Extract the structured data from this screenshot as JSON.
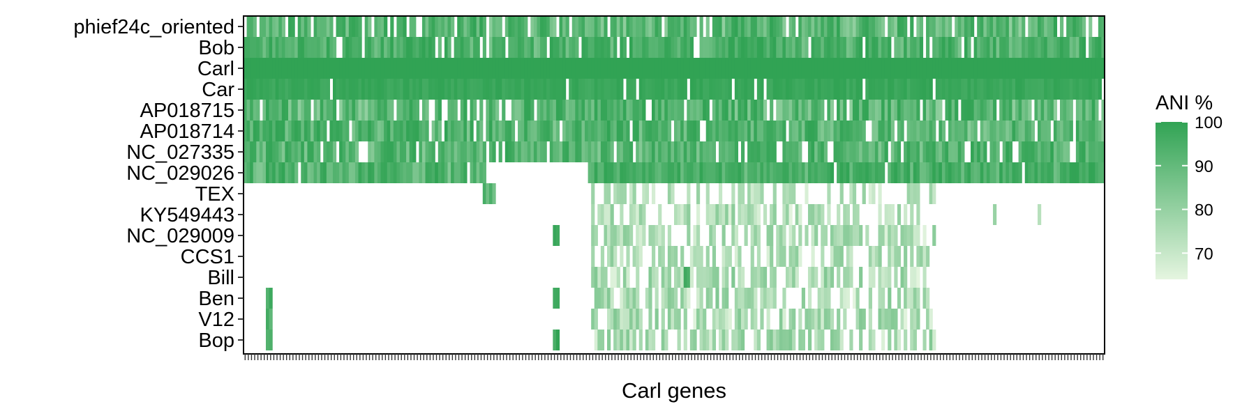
{
  "chart_data": {
    "type": "heatmap",
    "title": "",
    "xlabel": "Carl genes",
    "ylabel": "",
    "rows": [
      "phief24c_oriented",
      "Bob",
      "Carl",
      "Car",
      "AP018715",
      "AP018714",
      "NC_027335",
      "NC_029026",
      "TEX",
      "KY549443",
      "NC_029009",
      "CCS1",
      "Bill",
      "Ben",
      "V12",
      "Bop"
    ],
    "n_genes": 270,
    "value_range": [
      64,
      100
    ],
    "colorbar": {
      "title": "ANI %",
      "ticks": [
        70,
        80,
        90,
        100
      ],
      "low_color": "#e5f5e0",
      "high_color": "#31a354"
    },
    "regions": [
      {
        "row": "phief24c_oriented",
        "gene_range": [
          1,
          270
        ],
        "presence": 0.88,
        "ani_range": [
          80,
          100
        ]
      },
      {
        "row": "Bob",
        "gene_range": [
          1,
          270
        ],
        "presence": 0.92,
        "ani_range": [
          84,
          100
        ]
      },
      {
        "row": "Carl",
        "gene_range": [
          1,
          270
        ],
        "presence": 1.0,
        "ani_range": [
          100,
          100
        ]
      },
      {
        "row": "Car",
        "gene_range": [
          1,
          270
        ],
        "presence": 0.97,
        "ani_range": [
          96,
          100
        ]
      },
      {
        "row": "AP018715",
        "gene_range": [
          1,
          270
        ],
        "presence": 0.88,
        "ani_range": [
          80,
          100
        ]
      },
      {
        "row": "AP018714",
        "gene_range": [
          1,
          270
        ],
        "presence": 0.9,
        "ani_range": [
          82,
          100
        ]
      },
      {
        "row": "NC_027335",
        "gene_range": [
          1,
          270
        ],
        "presence": 0.88,
        "ani_range": [
          82,
          100
        ]
      },
      {
        "row": "NC_029026",
        "gene_range": [
          1,
          76
        ],
        "presence": 0.95,
        "ani_range": [
          82,
          100
        ]
      },
      {
        "row": "NC_029026",
        "gene_range": [
          109,
          270
        ],
        "presence": 0.97,
        "ani_range": [
          86,
          100
        ]
      },
      {
        "row": "TEX",
        "gene_range": [
          110,
          217
        ],
        "presence": 0.45,
        "ani_range": [
          64,
          80
        ]
      },
      {
        "row": "KY549443",
        "gene_range": [
          110,
          217
        ],
        "presence": 0.6,
        "ani_range": [
          64,
          82
        ]
      },
      {
        "row": "NC_029009",
        "gene_range": [
          110,
          217
        ],
        "presence": 0.6,
        "ani_range": [
          64,
          82
        ]
      },
      {
        "row": "CCS1",
        "gene_range": [
          110,
          217
        ],
        "presence": 0.6,
        "ani_range": [
          64,
          82
        ]
      },
      {
        "row": "Bill",
        "gene_range": [
          110,
          217
        ],
        "presence": 0.62,
        "ani_range": [
          64,
          84
        ]
      },
      {
        "row": "Ben",
        "gene_range": [
          110,
          217
        ],
        "presence": 0.62,
        "ani_range": [
          64,
          84
        ]
      },
      {
        "row": "V12",
        "gene_range": [
          110,
          217
        ],
        "presence": 0.62,
        "ani_range": [
          64,
          84
        ]
      },
      {
        "row": "Bop",
        "gene_range": [
          110,
          217
        ],
        "presence": 0.65,
        "ani_range": [
          64,
          84
        ]
      },
      {
        "row": "TEX",
        "gene_range": [
          76,
          79
        ],
        "presence": 1.0,
        "ani_range": [
          86,
          96
        ]
      },
      {
        "row": "NC_029009",
        "gene_range": [
          98,
          99
        ],
        "presence": 1.0,
        "ani_range": [
          94,
          100
        ]
      },
      {
        "row": "Ben",
        "gene_range": [
          98,
          99
        ],
        "presence": 1.0,
        "ani_range": [
          94,
          100
        ]
      },
      {
        "row": "Bop",
        "gene_range": [
          98,
          99
        ],
        "presence": 1.0,
        "ani_range": [
          94,
          100
        ]
      },
      {
        "row": "Bill",
        "gene_range": [
          139,
          140
        ],
        "presence": 1.0,
        "ani_range": [
          90,
          100
        ]
      },
      {
        "row": "Ben",
        "gene_range": [
          8,
          9
        ],
        "presence": 1.0,
        "ani_range": [
          90,
          98
        ]
      },
      {
        "row": "V12",
        "gene_range": [
          8,
          9
        ],
        "presence": 1.0,
        "ani_range": [
          90,
          98
        ]
      },
      {
        "row": "Bop",
        "gene_range": [
          8,
          9
        ],
        "presence": 1.0,
        "ani_range": [
          90,
          98
        ]
      },
      {
        "row": "KY549443",
        "gene_range": [
          236,
          236
        ],
        "presence": 1.0,
        "ani_range": [
          76,
          82
        ]
      },
      {
        "row": "KY549443",
        "gene_range": [
          250,
          250
        ],
        "presence": 1.0,
        "ani_range": [
          68,
          74
        ]
      }
    ]
  }
}
